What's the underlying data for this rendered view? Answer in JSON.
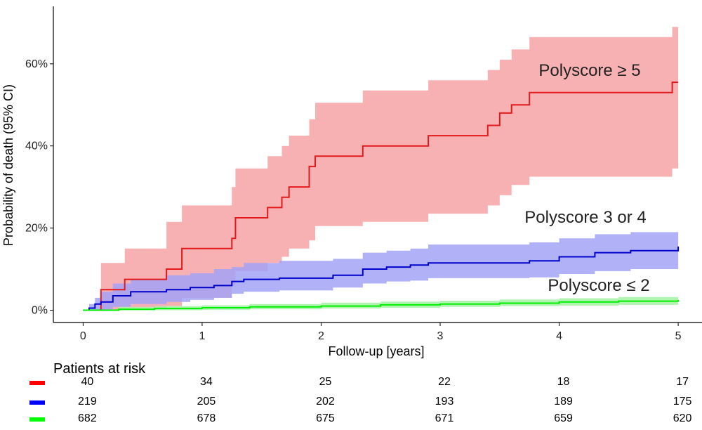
{
  "chart_data": {
    "type": "step",
    "ylabel": "Probability of death (95% CI)",
    "xlabel": "Follow-up [years]",
    "xlim": [
      -0.25,
      5.2
    ],
    "ylim": [
      -3,
      74
    ],
    "x_ticks": [
      0,
      1,
      2,
      3,
      4,
      5
    ],
    "y_ticks": [
      0,
      20,
      40,
      60
    ],
    "y_tick_labels": [
      "0%",
      "20%",
      "40%",
      "60%"
    ],
    "series": [
      {
        "name": "Polyscore ≥ 5",
        "label": "Polyscore ≥ 5",
        "color": "#e31a1c",
        "band_color": "#f7a3a6",
        "steps": [
          [
            0,
            0
          ],
          [
            0.15,
            5
          ],
          [
            0.35,
            7.5
          ],
          [
            0.7,
            10
          ],
          [
            0.83,
            15
          ],
          [
            1.25,
            17.5
          ],
          [
            1.28,
            22.5
          ],
          [
            1.55,
            25
          ],
          [
            1.67,
            27.5
          ],
          [
            1.73,
            30
          ],
          [
            1.9,
            35
          ],
          [
            1.95,
            37.5
          ],
          [
            2.35,
            40
          ],
          [
            2.9,
            42.5
          ],
          [
            3.4,
            45
          ],
          [
            3.5,
            48
          ],
          [
            3.6,
            50
          ],
          [
            3.75,
            53
          ],
          [
            4.95,
            55.5
          ],
          [
            5,
            55.5
          ]
        ],
        "lower": [
          [
            0,
            0
          ],
          [
            0.15,
            0
          ],
          [
            0.35,
            0.5
          ],
          [
            0.7,
            1
          ],
          [
            0.83,
            3
          ],
          [
            1.25,
            6
          ],
          [
            1.28,
            9.5
          ],
          [
            1.55,
            11.5
          ],
          [
            1.67,
            13
          ],
          [
            1.73,
            15
          ],
          [
            1.9,
            17
          ],
          [
            1.95,
            20.5
          ],
          [
            2.35,
            21.5
          ],
          [
            2.9,
            23.5
          ],
          [
            3.4,
            25.5
          ],
          [
            3.5,
            28
          ],
          [
            3.6,
            30.5
          ],
          [
            3.75,
            32.5
          ],
          [
            4.95,
            34.5
          ],
          [
            5,
            34.5
          ]
        ],
        "upper": [
          [
            0,
            0
          ],
          [
            0.15,
            11.5
          ],
          [
            0.35,
            15
          ],
          [
            0.7,
            21.5
          ],
          [
            0.83,
            25.5
          ],
          [
            1.25,
            30
          ],
          [
            1.28,
            34.5
          ],
          [
            1.55,
            37.5
          ],
          [
            1.67,
            40
          ],
          [
            1.73,
            42.5
          ],
          [
            1.9,
            46.5
          ],
          [
            1.95,
            50.5
          ],
          [
            2.35,
            53.5
          ],
          [
            2.9,
            56
          ],
          [
            3.4,
            58.5
          ],
          [
            3.5,
            61
          ],
          [
            3.6,
            63.5
          ],
          [
            3.75,
            66.5
          ],
          [
            4.95,
            69
          ],
          [
            5,
            69
          ]
        ]
      },
      {
        "name": "Polyscore 3 or 4",
        "label": "Polyscore 3 or 4",
        "color": "#0000cc",
        "band_color": "#a3a3f7",
        "steps": [
          [
            0,
            0
          ],
          [
            0.05,
            0.5
          ],
          [
            0.1,
            1.5
          ],
          [
            0.15,
            2
          ],
          [
            0.25,
            3.5
          ],
          [
            0.4,
            4.5
          ],
          [
            0.7,
            5
          ],
          [
            0.9,
            5.5
          ],
          [
            1.1,
            6
          ],
          [
            1.25,
            7
          ],
          [
            1.35,
            7.5
          ],
          [
            1.65,
            7.8
          ],
          [
            2.1,
            8.5
          ],
          [
            2.35,
            10
          ],
          [
            2.55,
            10.5
          ],
          [
            2.75,
            11
          ],
          [
            2.9,
            11.5
          ],
          [
            3.75,
            12
          ],
          [
            4.0,
            13
          ],
          [
            4.3,
            14
          ],
          [
            4.6,
            14.5
          ],
          [
            5,
            15.5
          ]
        ],
        "lower": [
          [
            0,
            0
          ],
          [
            0.1,
            0
          ],
          [
            0.25,
            0.8
          ],
          [
            0.4,
            1.5
          ],
          [
            0.7,
            2
          ],
          [
            0.9,
            2.5
          ],
          [
            1.1,
            3
          ],
          [
            1.25,
            4
          ],
          [
            1.35,
            4.5
          ],
          [
            1.65,
            4.8
          ],
          [
            2.1,
            5.5
          ],
          [
            2.35,
            6.5
          ],
          [
            2.55,
            7
          ],
          [
            2.75,
            7.2
          ],
          [
            2.9,
            7.8
          ],
          [
            3.75,
            8
          ],
          [
            4.0,
            8.8
          ],
          [
            4.3,
            9.5
          ],
          [
            4.6,
            10
          ],
          [
            5,
            10
          ]
        ],
        "upper": [
          [
            0,
            0
          ],
          [
            0.05,
            1.5
          ],
          [
            0.1,
            3
          ],
          [
            0.15,
            4.5
          ],
          [
            0.25,
            6.5
          ],
          [
            0.4,
            7.5
          ],
          [
            0.7,
            8.5
          ],
          [
            0.9,
            9
          ],
          [
            1.1,
            10
          ],
          [
            1.25,
            10.5
          ],
          [
            1.35,
            11.5
          ],
          [
            1.65,
            12
          ],
          [
            2.1,
            12.5
          ],
          [
            2.35,
            14
          ],
          [
            2.55,
            14.5
          ],
          [
            2.75,
            15
          ],
          [
            2.9,
            16
          ],
          [
            3.75,
            16.5
          ],
          [
            4.0,
            17.5
          ],
          [
            4.3,
            18.5
          ],
          [
            4.6,
            19
          ],
          [
            5,
            20
          ]
        ]
      },
      {
        "name": "Polyscore ≤ 2",
        "label": "Polyscore ≤ 2",
        "color": "#00ee00",
        "band_color": "#a3f2a3",
        "steps": [
          [
            0,
            0
          ],
          [
            0.3,
            0.2
          ],
          [
            0.6,
            0.4
          ],
          [
            1.0,
            0.6
          ],
          [
            1.4,
            0.8
          ],
          [
            2.0,
            1
          ],
          [
            2.5,
            1.3
          ],
          [
            3.0,
            1.5
          ],
          [
            3.5,
            1.7
          ],
          [
            4.0,
            2
          ],
          [
            4.5,
            2.2
          ],
          [
            5,
            2.5
          ]
        ],
        "lower": [
          [
            0,
            0
          ],
          [
            0.6,
            0
          ],
          [
            1.0,
            0.1
          ],
          [
            1.4,
            0.2
          ],
          [
            2.0,
            0.4
          ],
          [
            2.5,
            0.6
          ],
          [
            3.0,
            0.8
          ],
          [
            3.5,
            1
          ],
          [
            4.0,
            1.1
          ],
          [
            4.5,
            1.3
          ],
          [
            5,
            1.5
          ]
        ],
        "upper": [
          [
            0,
            0
          ],
          [
            0.3,
            0.8
          ],
          [
            0.6,
            1
          ],
          [
            1.0,
            1.2
          ],
          [
            1.4,
            1.5
          ],
          [
            2.0,
            1.8
          ],
          [
            2.5,
            2.1
          ],
          [
            3.0,
            2.3
          ],
          [
            3.5,
            2.6
          ],
          [
            4.0,
            2.9
          ],
          [
            4.5,
            3.2
          ],
          [
            5,
            3.6
          ]
        ]
      }
    ],
    "risk_table": {
      "title": "Patients at risk",
      "rows": [
        {
          "color": "#ff0000",
          "values": [
            "40",
            "34",
            "25",
            "22",
            "18",
            "17"
          ]
        },
        {
          "color": "#0000ff",
          "values": [
            "219",
            "205",
            "202",
            "193",
            "189",
            "175"
          ]
        },
        {
          "color": "#00ff00",
          "values": [
            "682",
            "678",
            "675",
            "671",
            "659",
            "620"
          ]
        }
      ]
    }
  }
}
